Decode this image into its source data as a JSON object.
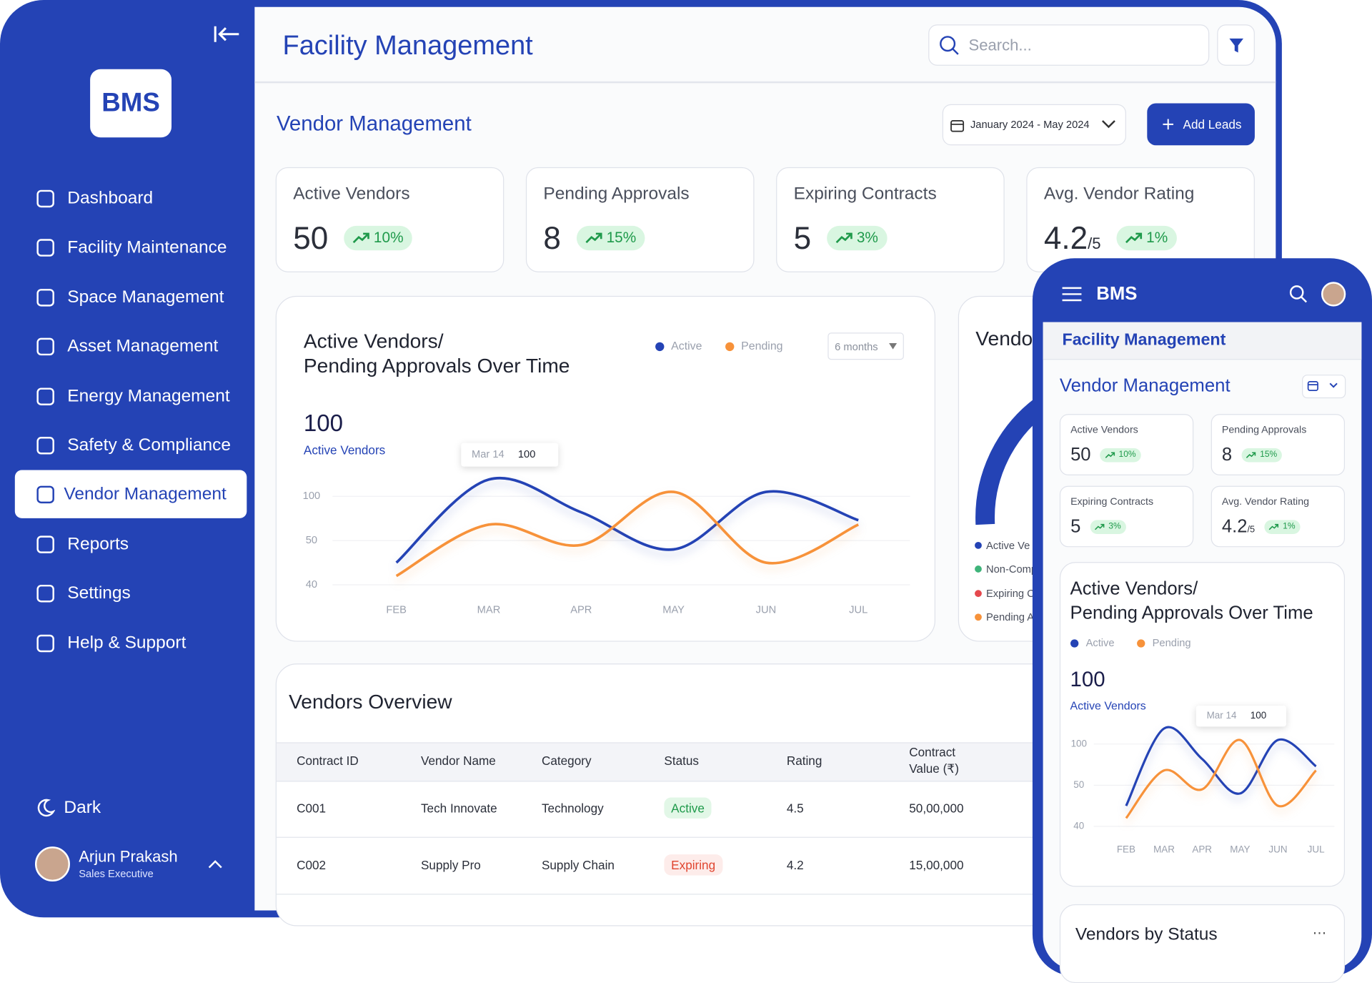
{
  "sidebar": {
    "logo": "BMS",
    "nav": [
      "Dashboard",
      "Facility Maintenance",
      "Space Management",
      "Asset Management",
      "Energy Management",
      "Safety & Compliance",
      "Vendor Management",
      "Reports",
      "Settings",
      "Help & Support"
    ],
    "theme": "Dark",
    "user": {
      "name": "Arjun Prakash",
      "role": "Sales Executive"
    }
  },
  "header": {
    "title": "Facility Management",
    "search": "Search..."
  },
  "page": {
    "title": "Vendor Management",
    "date_range": "January 2024 - May 2024",
    "add_button": "Add Leads"
  },
  "kpis": [
    {
      "label": "Active Vendors",
      "value": 50,
      "change": "10%"
    },
    {
      "label": "Pending Approvals",
      "value": 8,
      "change": "15%"
    },
    {
      "label": "Expiring Contracts",
      "value": 5,
      "change": "3%"
    },
    {
      "label": "Avg. Vendor Rating",
      "value": 4.2,
      "unit": "/5",
      "change": "1%"
    }
  ],
  "trend_chart": {
    "title": [
      "Active Vendors/",
      "Pending Approvals Over Time"
    ],
    "period": "6 months",
    "headline": {
      "value": 100,
      "label": "Active Vendors"
    },
    "tooltip": {
      "date": "Mar 14",
      "value": 100
    },
    "categories": [
      "FEB",
      "MAR",
      "APR",
      "MAY",
      "JUN",
      "JUL"
    ],
    "yticks": [
      40,
      50,
      100
    ],
    "series": [
      {
        "name": "Active",
        "color": "#2443b5",
        "values": [
          45,
          119,
          82,
          48,
          105,
          73
        ]
      },
      {
        "name": "Pending",
        "color": "#f7923a",
        "values": [
          42,
          68,
          49,
          105,
          45,
          68
        ]
      }
    ]
  },
  "status_chart": {
    "title": "Vendo",
    "legend": [
      "Active Ve",
      "Non-Comp",
      "Expiring C",
      "Pending A"
    ]
  },
  "table": {
    "title": "Vendors Overview",
    "columns": [
      "Contract ID",
      "Vendor Name",
      "Category",
      "Status",
      "Rating",
      "Contract Value (₹)"
    ],
    "rows": [
      [
        "C001",
        "Tech Innovate",
        "Technology",
        "Active",
        4.5,
        "50,00,000"
      ],
      [
        "C002",
        "Supply Pro",
        "Supply Chain",
        "Expiring",
        4.2,
        "15,00,000"
      ]
    ]
  },
  "mobile": {
    "status_title": "Vendors by Status"
  }
}
